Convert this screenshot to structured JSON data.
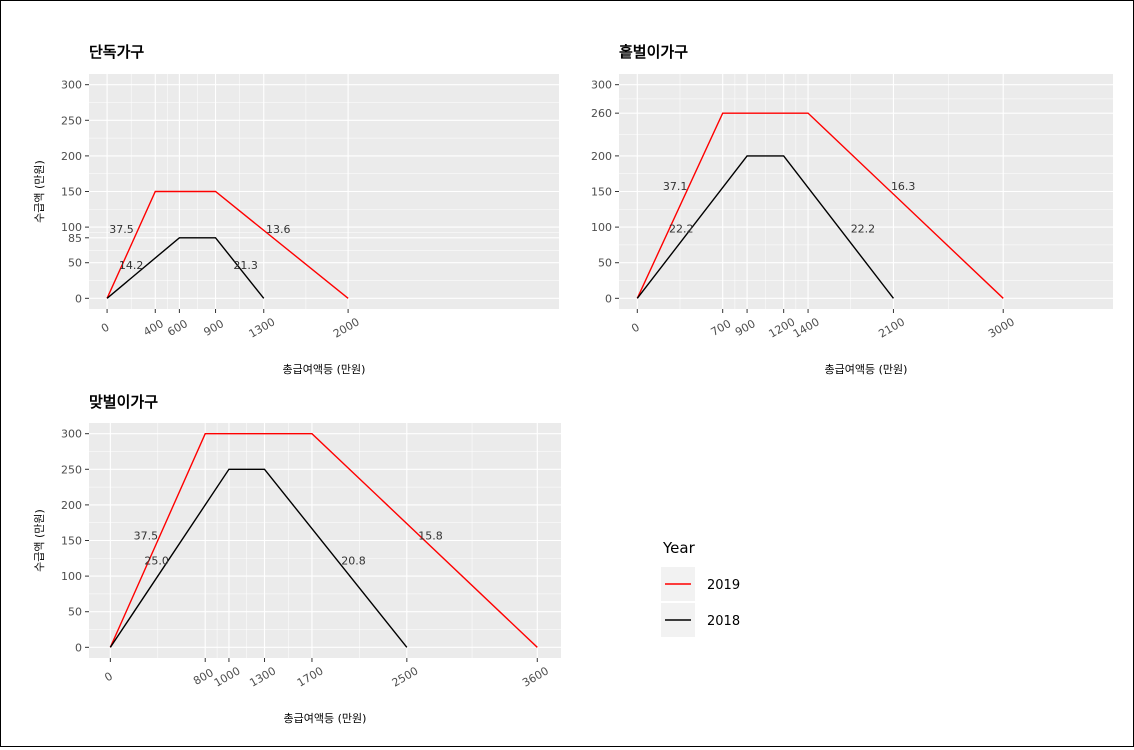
{
  "legend": {
    "title": "Year",
    "entries": [
      {
        "label": "2019",
        "color": "#ff0000"
      },
      {
        "label": "2018",
        "color": "#000000"
      }
    ]
  },
  "chart_data": [
    {
      "type": "line",
      "title": "단독가구",
      "xlabel": "총급여액등 (만원)",
      "ylabel": "수급액 (만원)",
      "xlim": [
        -150,
        3750
      ],
      "ylim": [
        -15,
        315
      ],
      "x_ticks": [
        "0",
        "400",
        "600",
        "900",
        "1300",
        "2000"
      ],
      "y_ticks": [
        "0",
        "50",
        "85",
        "100",
        "150",
        "200",
        "250",
        "300"
      ],
      "series": [
        {
          "name": "2019",
          "color": "#ff0000",
          "x": [
            0,
            400,
            900,
            2000
          ],
          "y": [
            0,
            150,
            150,
            0
          ]
        },
        {
          "name": "2018",
          "color": "#000000",
          "x": [
            0,
            600,
            900,
            1300
          ],
          "y": [
            0,
            85,
            85,
            0
          ]
        }
      ],
      "annotations": [
        {
          "text": "37.5",
          "x": 120,
          "y": 97
        },
        {
          "text": "14.2",
          "x": 200,
          "y": 47
        },
        {
          "text": "13.6",
          "x": 1420,
          "y": 97
        },
        {
          "text": "21.3",
          "x": 1150,
          "y": 47
        }
      ]
    },
    {
      "type": "line",
      "title": "홑벌이가구",
      "xlabel": "총급여액등 (만원)",
      "ylabel": "",
      "xlim": [
        -150,
        3900
      ],
      "ylim": [
        -15,
        315
      ],
      "x_ticks": [
        "0",
        "700",
        "900",
        "1200",
        "1400",
        "2100",
        "3000"
      ],
      "y_ticks": [
        "0",
        "50",
        "100",
        "150",
        "200",
        "260",
        "300"
      ],
      "series": [
        {
          "name": "2019",
          "color": "#ff0000",
          "x": [
            0,
            700,
            1400,
            3000
          ],
          "y": [
            0,
            260,
            260,
            0
          ]
        },
        {
          "name": "2018",
          "color": "#000000",
          "x": [
            0,
            900,
            1200,
            2100
          ],
          "y": [
            0,
            200,
            200,
            0
          ]
        }
      ],
      "annotations": [
        {
          "text": "37.1",
          "x": 310,
          "y": 158
        },
        {
          "text": "22.2",
          "x": 360,
          "y": 98
        },
        {
          "text": "16.3",
          "x": 2180,
          "y": 158
        },
        {
          "text": "22.2",
          "x": 1850,
          "y": 98
        }
      ]
    },
    {
      "type": "line",
      "title": "맞벌이가구",
      "xlabel": "총급여액등 (만원)",
      "ylabel": "수급액 (만원)",
      "xlim": [
        -180,
        3800
      ],
      "ylim": [
        -15,
        315
      ],
      "x_ticks": [
        "0",
        "800",
        "1000",
        "1300",
        "1700",
        "2500",
        "3600"
      ],
      "y_ticks": [
        "0",
        "50",
        "100",
        "150",
        "200",
        "250",
        "300"
      ],
      "series": [
        {
          "name": "2019",
          "color": "#ff0000",
          "x": [
            0,
            800,
            1700,
            3600
          ],
          "y": [
            0,
            300,
            300,
            0
          ]
        },
        {
          "name": "2018",
          "color": "#000000",
          "x": [
            0,
            1000,
            1300,
            2500
          ],
          "y": [
            0,
            250,
            250,
            0
          ]
        }
      ],
      "annotations": [
        {
          "text": "37.5",
          "x": 300,
          "y": 157
        },
        {
          "text": "25.0",
          "x": 390,
          "y": 122
        },
        {
          "text": "15.8",
          "x": 2700,
          "y": 157
        },
        {
          "text": "20.8",
          "x": 2050,
          "y": 122
        }
      ]
    }
  ]
}
